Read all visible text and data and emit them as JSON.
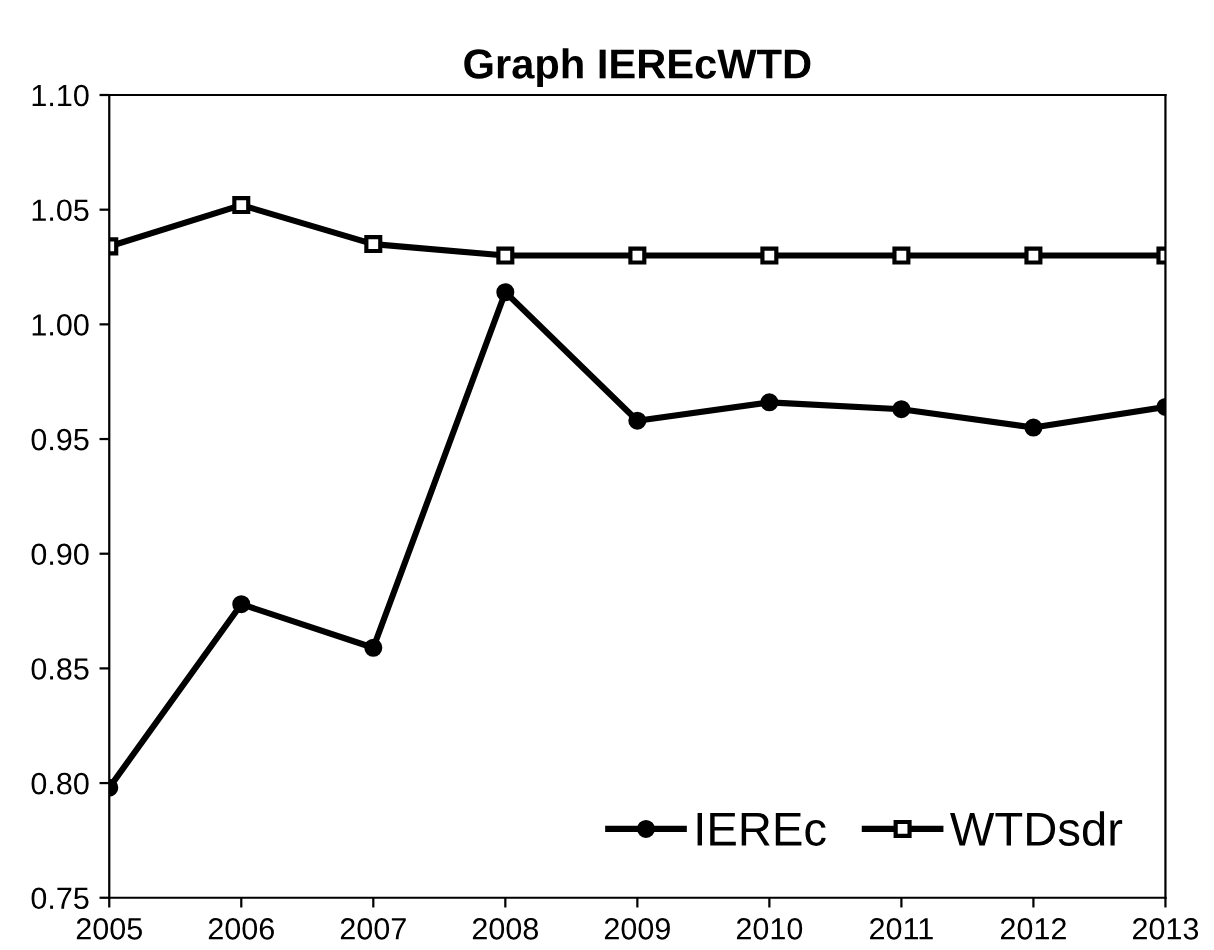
{
  "chart_data": {
    "type": "line",
    "title": "Graph IEREcWTD",
    "x": [
      2005,
      2006,
      2007,
      2008,
      2009,
      2010,
      2011,
      2012,
      2013
    ],
    "xlim": [
      2005,
      2013
    ],
    "xticks": [
      2005,
      2006,
      2007,
      2008,
      2009,
      2010,
      2011,
      2012,
      2013
    ],
    "ylim": [
      0.75,
      1.1
    ],
    "yticks": [
      {
        "value": 0.75,
        "label": "0.75"
      },
      {
        "value": 0.8,
        "label": "0.80"
      },
      {
        "value": 0.85,
        "label": "0.85"
      },
      {
        "value": 0.9,
        "label": "0.90"
      },
      {
        "value": 0.95,
        "label": "0.95"
      },
      {
        "value": 1.0,
        "label": "1.00"
      },
      {
        "value": 1.05,
        "label": "1.05"
      },
      {
        "value": 1.1,
        "label": "1.10"
      }
    ],
    "grid": false,
    "legend": "bottom right",
    "line_style": "solid",
    "series": [
      {
        "name": "IEREc",
        "color": "#000000",
        "marker": "circle",
        "values": [
          0.798,
          0.878,
          0.859,
          1.014,
          0.958,
          0.966,
          0.963,
          0.955,
          0.964
        ]
      },
      {
        "name": "WTDsdr",
        "color": "#000000",
        "marker": "square",
        "values": [
          1.034,
          1.052,
          1.035,
          1.03,
          1.03,
          1.03,
          1.03,
          1.03,
          1.03
        ]
      }
    ]
  }
}
